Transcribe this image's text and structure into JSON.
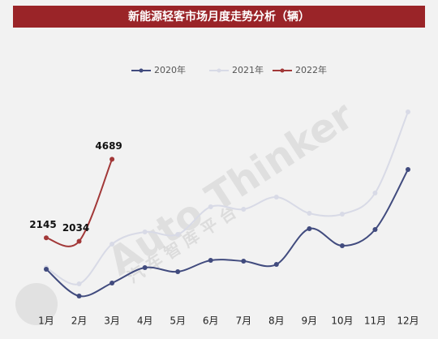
{
  "chart_data": {
    "type": "line",
    "title": "新能源轻客市场月度走势分析（辆）",
    "watermark": "Auto Thinker",
    "watermark_sub": "汽 车 智 库 平 台",
    "categories": [
      "1月",
      "2月",
      "3月",
      "4月",
      "5月",
      "6月",
      "7月",
      "8月",
      "9月",
      "10月",
      "11月",
      "12月"
    ],
    "series": [
      {
        "name": "2020年",
        "color": "#414b7e",
        "values": [
          1128,
          262,
          682,
          1181,
          1050,
          1417,
          1391,
          1286,
          2441,
          1890,
          2415,
          4357
        ]
      },
      {
        "name": "2021年",
        "color": "#d8dae6",
        "values": [
          1181,
          656,
          1942,
          2336,
          2257,
          3150,
          3071,
          3465,
          2940,
          2913,
          3596,
          6220
        ]
      },
      {
        "name": "2022年",
        "color": "#a23838",
        "values": [
          2145,
          2034,
          4689,
          null,
          null,
          null,
          null,
          null,
          null,
          null,
          null,
          null
        ]
      }
    ]
  }
}
